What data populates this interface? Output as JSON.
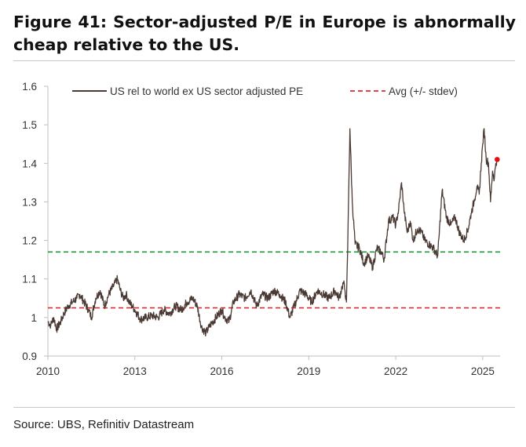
{
  "header": {
    "title_line1": "Figure 41: Sector-adjusted P/E in Europe is abnormally",
    "title_line2": "cheap relative to the US."
  },
  "footer": {
    "source": "Source: UBS, Refinitiv Datastream"
  },
  "colors": {
    "series": "#4a3a33",
    "avg": "#e0282a",
    "upper": "#1f9a3a",
    "endpoint": "#e01010",
    "axis": "#bfbfbf"
  },
  "chart_data": {
    "type": "line",
    "title": "Figure 41: Sector-adjusted P/E in Europe is abnormally cheap relative to the US.",
    "xlabel": "",
    "ylabel": "",
    "xlim": [
      2010,
      2025.6
    ],
    "ylim": [
      0.9,
      1.6
    ],
    "y_ticks": [
      "0.9",
      "1",
      "1.1",
      "1.2",
      "1.3",
      "1.4",
      "1.5",
      "1.6"
    ],
    "x_ticks": [
      "2010",
      "2013",
      "2016",
      "2019",
      "2022",
      "2025"
    ],
    "legend": [
      {
        "label": "US rel to world ex US sector adjusted PE",
        "style": "solid"
      },
      {
        "label": "Avg (+/- stdev)",
        "style": "dashed"
      }
    ],
    "legend_position": "top",
    "series": [
      {
        "name": "US rel to world ex US sector adjusted PE",
        "x": [
          2010.0,
          2010.1,
          2010.2,
          2010.3,
          2010.45,
          2010.55,
          2010.7,
          2010.85,
          2011.0,
          2011.1,
          2011.25,
          2011.4,
          2011.5,
          2011.65,
          2011.8,
          2011.95,
          2012.1,
          2012.25,
          2012.4,
          2012.5,
          2012.6,
          2012.7,
          2012.8,
          2012.9,
          2013.0,
          2013.2,
          2013.4,
          2013.6,
          2013.8,
          2014.0,
          2014.2,
          2014.4,
          2014.6,
          2014.8,
          2015.0,
          2015.15,
          2015.3,
          2015.45,
          2015.6,
          2015.8,
          2016.0,
          2016.1,
          2016.25,
          2016.4,
          2016.6,
          2016.8,
          2017.0,
          2017.2,
          2017.4,
          2017.6,
          2017.8,
          2018.0,
          2018.2,
          2018.35,
          2018.5,
          2018.7,
          2018.9,
          2019.1,
          2019.3,
          2019.5,
          2019.7,
          2019.9,
          2020.05,
          2020.15,
          2020.2,
          2020.25,
          2020.3,
          2020.34,
          2020.37,
          2020.42,
          2020.5,
          2020.6,
          2020.75,
          2020.9,
          2021.05,
          2021.2,
          2021.35,
          2021.5,
          2021.6,
          2021.75,
          2021.9,
          2022.0,
          2022.1,
          2022.2,
          2022.3,
          2022.4,
          2022.5,
          2022.6,
          2022.75,
          2022.9,
          2023.0,
          2023.15,
          2023.3,
          2023.45,
          2023.6,
          2023.75,
          2023.9,
          2024.05,
          2024.2,
          2024.35,
          2024.5,
          2024.6,
          2024.7,
          2024.8,
          2024.88,
          2024.95,
          2025.0,
          2025.05,
          2025.12,
          2025.2,
          2025.27,
          2025.34,
          2025.4,
          2025.45,
          2025.5
        ],
        "values": [
          0.99,
          0.98,
          1.0,
          0.97,
          0.99,
          1.01,
          1.03,
          1.04,
          1.05,
          1.06,
          1.04,
          1.02,
          1.0,
          1.05,
          1.07,
          1.03,
          1.06,
          1.08,
          1.1,
          1.07,
          1.05,
          1.06,
          1.04,
          1.03,
          1.02,
          0.995,
          1.0,
          1.005,
          1.0,
          1.02,
          1.01,
          1.03,
          1.02,
          1.04,
          1.05,
          1.03,
          0.975,
          0.96,
          0.98,
          1.0,
          1.02,
          1.0,
          0.99,
          1.04,
          1.06,
          1.05,
          1.07,
          1.03,
          1.06,
          1.05,
          1.07,
          1.06,
          1.04,
          1.0,
          1.03,
          1.07,
          1.06,
          1.04,
          1.07,
          1.06,
          1.05,
          1.07,
          1.05,
          1.08,
          1.09,
          1.07,
          1.04,
          1.17,
          1.3,
          1.49,
          1.3,
          1.19,
          1.18,
          1.14,
          1.16,
          1.13,
          1.18,
          1.17,
          1.15,
          1.25,
          1.26,
          1.24,
          1.28,
          1.35,
          1.27,
          1.22,
          1.25,
          1.2,
          1.23,
          1.22,
          1.2,
          1.19,
          1.18,
          1.16,
          1.33,
          1.26,
          1.24,
          1.26,
          1.22,
          1.2,
          1.23,
          1.27,
          1.3,
          1.34,
          1.32,
          1.4,
          1.45,
          1.49,
          1.41,
          1.4,
          1.3,
          1.38,
          1.36,
          1.4,
          1.41
        ]
      }
    ],
    "reference_lines": [
      {
        "name": "Avg",
        "value": 1.025,
        "style": "dashed",
        "color": "red"
      },
      {
        "name": "+1 stdev",
        "value": 1.17,
        "style": "dashed",
        "color": "green"
      }
    ],
    "end_point": {
      "x": 2025.5,
      "value": 1.41
    }
  }
}
